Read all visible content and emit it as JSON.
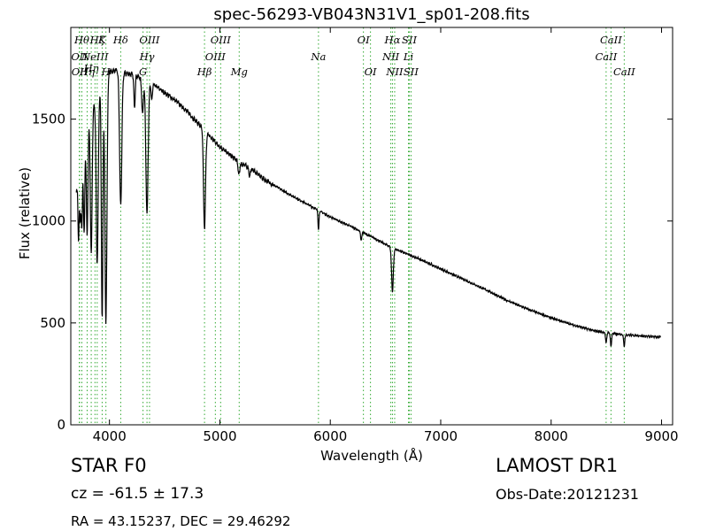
{
  "header": {
    "title": "spec-56293-VB043N31V1_sp01-208.fits"
  },
  "info": {
    "object_type": "STAR   F0",
    "survey": "LAMOST DR1",
    "redshift": "cz = -61.5 ± 17.3",
    "obs_date": "Obs-Date:20121231",
    "coords": "RA = 43.15237, DEC = 29.46292"
  },
  "chart_data": {
    "type": "line",
    "title": "spec-56293-VB043N31V1_sp01-208.fits",
    "xlabel": "Wavelength (Å)",
    "ylabel": "Flux (relative)",
    "xlim": [
      3650,
      9100
    ],
    "ylim": [
      0,
      1950
    ],
    "xticks": [
      4000,
      5000,
      6000,
      7000,
      8000,
      9000
    ],
    "yticks": [
      0,
      500,
      1000,
      1500
    ],
    "grid": false,
    "line_color": "#000000",
    "marker_line_color": "#33aa33",
    "continuum": [
      [
        3700,
        1150
      ],
      [
        3720,
        1200
      ],
      [
        3760,
        1350
      ],
      [
        3800,
        1480
      ],
      [
        3850,
        1560
      ],
      [
        3900,
        1630
      ],
      [
        3950,
        1690
      ],
      [
        4000,
        1730
      ],
      [
        4050,
        1740
      ],
      [
        4100,
        1730
      ],
      [
        4200,
        1720
      ],
      [
        4300,
        1700
      ],
      [
        4400,
        1670
      ],
      [
        4500,
        1630
      ],
      [
        4600,
        1590
      ],
      [
        4700,
        1540
      ],
      [
        4800,
        1480
      ],
      [
        4900,
        1420
      ],
      [
        5000,
        1365
      ],
      [
        5100,
        1320
      ],
      [
        5200,
        1280
      ],
      [
        5300,
        1250
      ],
      [
        5400,
        1205
      ],
      [
        5600,
        1140
      ],
      [
        5800,
        1080
      ],
      [
        6000,
        1020
      ],
      [
        6200,
        970
      ],
      [
        6400,
        915
      ],
      [
        6500,
        885
      ],
      [
        6600,
        860
      ],
      [
        6800,
        815
      ],
      [
        7000,
        765
      ],
      [
        7200,
        715
      ],
      [
        7400,
        665
      ],
      [
        7600,
        610
      ],
      [
        7800,
        565
      ],
      [
        8000,
        525
      ],
      [
        8200,
        490
      ],
      [
        8400,
        460
      ],
      [
        8600,
        445
      ],
      [
        8800,
        437
      ],
      [
        8990,
        430
      ]
    ],
    "absorptions": [
      {
        "x": 3720,
        "depth": 300,
        "width": 5
      },
      {
        "x": 3735,
        "depth": 250,
        "width": 5
      },
      {
        "x": 3750,
        "depth": 350,
        "width": 6
      },
      {
        "x": 3771,
        "depth": 450,
        "width": 6
      },
      {
        "x": 3798,
        "depth": 550,
        "width": 7
      },
      {
        "x": 3835,
        "depth": 700,
        "width": 8
      },
      {
        "x": 3889,
        "depth": 820,
        "width": 9
      },
      {
        "x": 3934,
        "depth": 1150,
        "width": 7
      },
      {
        "x": 3968,
        "depth": 1200,
        "width": 9
      },
      {
        "x": 4102,
        "depth": 650,
        "width": 10
      },
      {
        "x": 4227,
        "depth": 150,
        "width": 6
      },
      {
        "x": 4300,
        "depth": 170,
        "width": 8
      },
      {
        "x": 4340,
        "depth": 660,
        "width": 10
      },
      {
        "x": 4383,
        "depth": 90,
        "width": 6
      },
      {
        "x": 4861,
        "depth": 480,
        "width": 9
      },
      {
        "x": 5172,
        "depth": 60,
        "width": 8
      },
      {
        "x": 5270,
        "depth": 40,
        "width": 6
      },
      {
        "x": 5893,
        "depth": 90,
        "width": 5
      },
      {
        "x": 6280,
        "depth": 40,
        "width": 6
      },
      {
        "x": 6563,
        "depth": 215,
        "width": 8
      },
      {
        "x": 8498,
        "depth": 55,
        "width": 5
      },
      {
        "x": 8542,
        "depth": 65,
        "width": 5
      },
      {
        "x": 8662,
        "depth": 60,
        "width": 5
      }
    ],
    "line_markers": [
      {
        "x": 3727,
        "label": "OII",
        "row": 2,
        "color": "#33aa33"
      },
      {
        "x": 3730,
        "label": "OII",
        "row": 3,
        "color": "#33aa33"
      },
      {
        "x": 3750,
        "label": "Hθ",
        "row": 1,
        "color": "#33aa33"
      },
      {
        "x": 3798,
        "label": "Hη",
        "row": 3,
        "color": "#33aa33"
      },
      {
        "x": 3835,
        "label": "Hη",
        "row": 2.9,
        "color": "#33aa33"
      },
      {
        "x": 3869,
        "label": "NeIII",
        "row": 2,
        "color": "#33aa33"
      },
      {
        "x": 3889,
        "label": "Hζ",
        "row": 1,
        "color": "#33aa33"
      },
      {
        "x": 3934,
        "label": "K",
        "row": 1,
        "color": "#33aa33"
      },
      {
        "x": 3968,
        "label": "H",
        "row": 3,
        "color": "#33aa33"
      },
      {
        "x": 4102,
        "label": "Hδ",
        "row": 1,
        "color": "#33aa33"
      },
      {
        "x": 4304,
        "label": "G",
        "row": 3,
        "color": "#33aa33"
      },
      {
        "x": 4340,
        "label": "Hγ",
        "row": 2,
        "color": "#33aa33"
      },
      {
        "x": 4363,
        "label": "OIII",
        "row": 1,
        "color": "#33aa33"
      },
      {
        "x": 4861,
        "label": "Hβ",
        "row": 3,
        "color": "#33aa33"
      },
      {
        "x": 4959,
        "label": "OIII",
        "row": 2,
        "color": "#33aa33"
      },
      {
        "x": 5007,
        "label": "OIII",
        "row": 1,
        "color": "#33aa33"
      },
      {
        "x": 5175,
        "label": "Mg",
        "row": 3,
        "color": "#33aa33"
      },
      {
        "x": 5893,
        "label": "Na",
        "row": 2,
        "color": "#33aa33"
      },
      {
        "x": 6300,
        "label": "OI",
        "row": 1,
        "color": "#33aa33"
      },
      {
        "x": 6364,
        "label": "OI",
        "row": 3,
        "color": "#33aa33"
      },
      {
        "x": 6548,
        "label": "NII",
        "row": 2,
        "color": "#33aa33"
      },
      {
        "x": 6563,
        "label": "Hα",
        "row": 1,
        "color": "#33aa33"
      },
      {
        "x": 6583,
        "label": "NII",
        "row": 3,
        "color": "#33aa33"
      },
      {
        "x": 6708,
        "label": "Li",
        "row": 2,
        "color": "#33aa33"
      },
      {
        "x": 6716,
        "label": "SII",
        "row": 1,
        "color": "#33aa33"
      },
      {
        "x": 6731,
        "label": "SII",
        "row": 3,
        "color": "#33aa33"
      },
      {
        "x": 8498,
        "label": "CaII",
        "row": 2,
        "color": "#33aa33"
      },
      {
        "x": 8542,
        "label": "CaII",
        "row": 1,
        "color": "#33aa33"
      },
      {
        "x": 8662,
        "label": "CaII",
        "row": 3,
        "color": "#33aa33"
      }
    ]
  }
}
